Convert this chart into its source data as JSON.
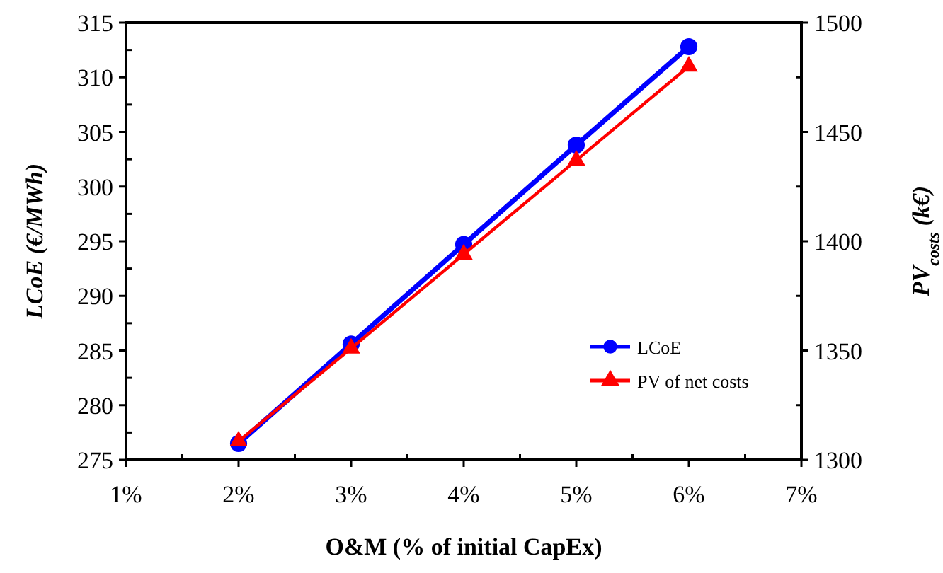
{
  "chart_data": {
    "type": "line",
    "xlabel": "O&M (% of initial CapEx)",
    "ylabel": "LCoE  (€/MWh)",
    "y2label": "PV$_{costs}$  (k€)",
    "x": [
      2,
      3,
      4,
      5,
      6
    ],
    "xlim": [
      1,
      7
    ],
    "xticks": [
      {
        "value": 1,
        "label": "1%"
      },
      {
        "value": 1.5,
        "label": null
      },
      {
        "value": 2,
        "label": "2%"
      },
      {
        "value": 2.5,
        "label": null
      },
      {
        "value": 3,
        "label": "3%"
      },
      {
        "value": 3.5,
        "label": null
      },
      {
        "value": 4,
        "label": "4%"
      },
      {
        "value": 4.5,
        "label": null
      },
      {
        "value": 5,
        "label": "5%"
      },
      {
        "value": 5.5,
        "label": null
      },
      {
        "value": 6,
        "label": "6%"
      },
      {
        "value": 6.5,
        "label": null
      },
      {
        "value": 7,
        "label": "7%"
      }
    ],
    "ylim": [
      275,
      315
    ],
    "yticks": [
      275,
      {
        "value": 277.5,
        "label": null
      },
      280,
      {
        "value": 282.5,
        "label": null
      },
      285,
      {
        "value": 287.5,
        "label": null
      },
      290,
      {
        "value": 292.5,
        "label": null
      },
      295,
      {
        "value": 297.5,
        "label": null
      },
      300,
      {
        "value": 302.5,
        "label": null
      },
      305,
      {
        "value": 307.5,
        "label": null
      },
      310,
      {
        "value": 312.5,
        "label": null
      },
      315
    ],
    "y2lim": [
      1300,
      1500
    ],
    "y2ticks": [
      1300,
      {
        "value": 1325,
        "label": null
      },
      1350,
      {
        "value": 1375,
        "label": null
      },
      1400,
      {
        "value": 1425,
        "label": null
      },
      1450,
      {
        "value": 1475,
        "label": null
      },
      1500
    ],
    "series": [
      {
        "name": "LCoE",
        "color": "#0000ff",
        "marker": "circle",
        "values": [
          276.5,
          285.6,
          294.7,
          303.8,
          312.8
        ]
      },
      {
        "name": "PV of net costs",
        "color": "#ff0000",
        "marker": "triangle",
        "axis": "y2",
        "values": [
          1308.5,
          1351,
          1394,
          1437,
          1480
        ]
      }
    ],
    "legend": "right",
    "grid": false
  }
}
